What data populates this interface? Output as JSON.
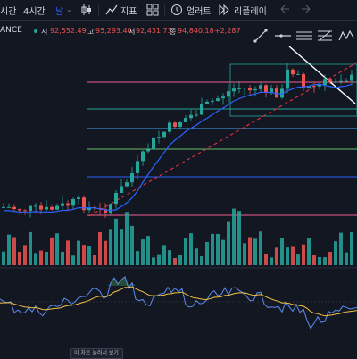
{
  "toolbar": {
    "timeframes": [
      {
        "label": "시간",
        "active": false
      },
      {
        "label": "4시간",
        "active": false
      },
      {
        "label": "날",
        "active": true
      }
    ],
    "indicators_label": "지표",
    "alerts_label": "얼러트",
    "replay_label": "리플레이"
  },
  "info": {
    "symbol_suffix": "ANCE",
    "open_label": "시",
    "open_value": "92,552.49",
    "high_label": "고",
    "high_value": "95,293.40",
    "low_label": "저",
    "low_value": "92,431.73",
    "close_label": "종",
    "close_value": "94,840.18",
    "change_value": "+2,287"
  },
  "badge": {
    "text": "이 차트 눌러서 보기"
  },
  "colors": {
    "bg": "#131722",
    "up": "#26a69a",
    "down": "#ef5350",
    "ma_line": "#2962ff",
    "trend_dashed": "#f23645",
    "osc_line": "#f5c242",
    "osc_fill": "#4caf50"
  },
  "icons": [
    "candle-type-icon",
    "indicators-icon",
    "layout-icon",
    "alert-icon",
    "replay-icon",
    "undo-icon",
    "redo-icon"
  ]
}
